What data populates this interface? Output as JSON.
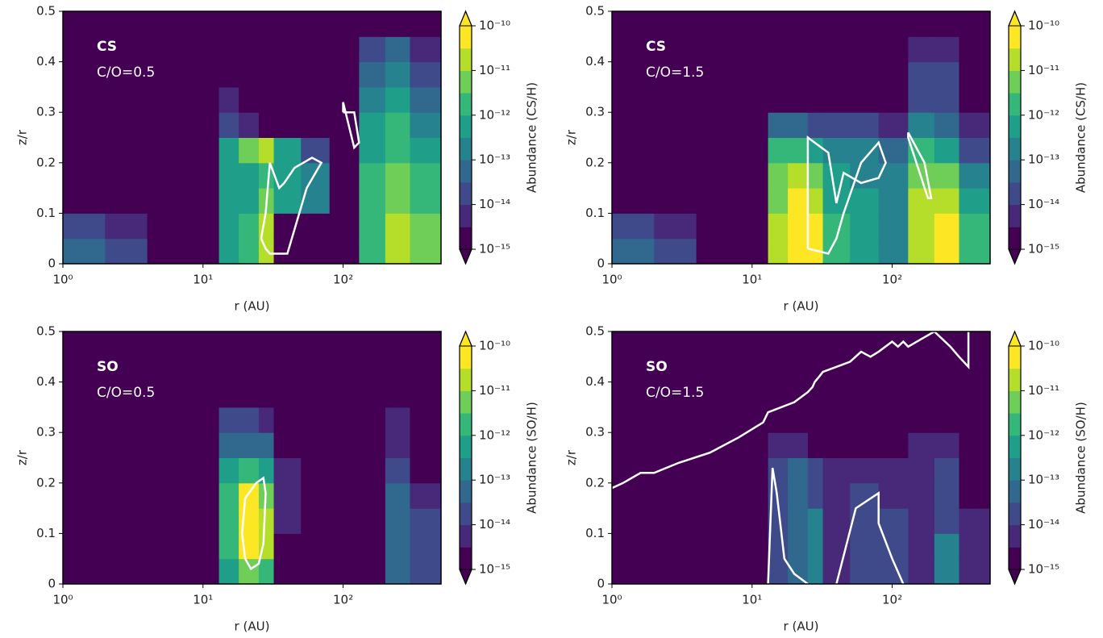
{
  "chart_data": [
    {
      "type": "contour",
      "species": "CS",
      "ratio": "C/O=0.5",
      "xlabel": "r (AU)",
      "ylabel": "z/r",
      "cbar_label": "Abundance (CS/H)",
      "cmap": "viridis",
      "xscale": "log",
      "xlim": [
        1,
        500
      ],
      "xticks": [
        {
          "value": 1,
          "label": "10⁰"
        },
        {
          "value": 10,
          "label": "10¹"
        },
        {
          "value": 100,
          "label": "10²"
        }
      ],
      "ylim": [
        0,
        0.5
      ],
      "yticks": [
        0,
        0.1,
        0.2,
        0.3,
        0.4,
        0.5
      ],
      "levels": [
        -15,
        -14.5,
        -14,
        -13.5,
        -13,
        -12.5,
        -12,
        -11.5,
        -11,
        -10.5,
        -10
      ],
      "zticks": [
        {
          "value": -10,
          "label": "10⁻¹⁰"
        },
        {
          "value": -11,
          "label": "10⁻¹¹"
        },
        {
          "value": -12,
          "label": "10⁻¹²"
        },
        {
          "value": -13,
          "label": "10⁻¹³"
        },
        {
          "value": -14,
          "label": "10⁻¹⁴"
        },
        {
          "value": -15,
          "label": "10⁻¹⁵"
        }
      ],
      "x_edges": [
        1,
        2,
        4,
        8,
        13,
        18,
        25,
        32,
        50,
        80,
        130,
        200,
        300,
        500
      ],
      "y_edges": [
        0,
        0.05,
        0.1,
        0.15,
        0.2,
        0.25,
        0.3,
        0.35,
        0.4,
        0.45,
        0.5
      ],
      "z": [
        [
          -13.5,
          -14,
          -15,
          -15,
          -12.5,
          -12,
          -11,
          -15,
          -15,
          -15,
          -12,
          -11,
          -11.5
        ],
        [
          -14,
          -14.5,
          -15,
          -15,
          -12.5,
          -12,
          -11,
          -15,
          -15,
          -15,
          -12,
          -11,
          -11.5
        ],
        [
          -15,
          -15,
          -15,
          -15,
          -12.5,
          -12.5,
          -11.5,
          -12.5,
          -13,
          -15,
          -12,
          -11.5,
          -12
        ],
        [
          -15,
          -15,
          -15,
          -15,
          -12.5,
          -12.5,
          -12,
          -12.5,
          -13,
          -15,
          -12,
          -11.5,
          -12
        ],
        [
          -15,
          -15,
          -15,
          -15,
          -12.5,
          -11.5,
          -11,
          -12.5,
          -14,
          -15,
          -12.5,
          -12,
          -12.5
        ],
        [
          -15,
          -15,
          -15,
          -15,
          -14,
          -14.5,
          -15,
          -15,
          -15,
          -15,
          -12.5,
          -12,
          -13
        ],
        [
          -15,
          -15,
          -15,
          -15,
          -14.5,
          -15,
          -15,
          -15,
          -15,
          -15,
          -13,
          -12.5,
          -13.5
        ],
        [
          -15,
          -15,
          -15,
          -15,
          -15,
          -15,
          -15,
          -15,
          -15,
          -15,
          -13.5,
          -13,
          -14
        ],
        [
          -15,
          -15,
          -15,
          -15,
          -15,
          -15,
          -15,
          -15,
          -15,
          -15,
          -14,
          -13.5,
          -14.5
        ],
        [
          -15,
          -15,
          -15,
          -15,
          -15,
          -15,
          -15,
          -15,
          -15,
          -15,
          -15,
          -15,
          -15
        ]
      ],
      "contours": [
        {
          "x": [
            26,
            28,
            30,
            35,
            40,
            55,
            70,
            60,
            45,
            38,
            35,
            30,
            28,
            26
          ],
          "y": [
            0.05,
            0.03,
            0.02,
            0.02,
            0.02,
            0.15,
            0.2,
            0.21,
            0.19,
            0.16,
            0.15,
            0.2,
            0.1,
            0.05
          ]
        },
        {
          "x": [
            100,
            120,
            130,
            120,
            100,
            100
          ],
          "y": [
            0.3,
            0.3,
            0.24,
            0.23,
            0.32,
            0.3
          ]
        }
      ]
    },
    {
      "type": "contour",
      "species": "CS",
      "ratio": "C/O=1.5",
      "xlabel": "r (AU)",
      "ylabel": "z/r",
      "cbar_label": "Abundance (CS/H)",
      "cmap": "viridis",
      "xscale": "log",
      "xlim": [
        1,
        500
      ],
      "xticks": [
        {
          "value": 1,
          "label": "10⁰"
        },
        {
          "value": 10,
          "label": "10¹"
        },
        {
          "value": 100,
          "label": "10²"
        }
      ],
      "ylim": [
        0,
        0.5
      ],
      "yticks": [
        0,
        0.1,
        0.2,
        0.3,
        0.4,
        0.5
      ],
      "levels": [
        -15,
        -14.5,
        -14,
        -13.5,
        -13,
        -12.5,
        -12,
        -11.5,
        -11,
        -10.5,
        -10
      ],
      "zticks": [
        {
          "value": -10,
          "label": "10⁻¹⁰"
        },
        {
          "value": -11,
          "label": "10⁻¹¹"
        },
        {
          "value": -12,
          "label": "10⁻¹²"
        },
        {
          "value": -13,
          "label": "10⁻¹³"
        },
        {
          "value": -14,
          "label": "10⁻¹⁴"
        },
        {
          "value": -15,
          "label": "10⁻¹⁵"
        }
      ],
      "x_edges": [
        1,
        2,
        4,
        8,
        13,
        18,
        25,
        32,
        50,
        80,
        130,
        200,
        300,
        500
      ],
      "y_edges": [
        0,
        0.05,
        0.1,
        0.15,
        0.2,
        0.25,
        0.3,
        0.35,
        0.4,
        0.45,
        0.5
      ],
      "z": [
        [
          -13.5,
          -14,
          -15,
          -15,
          -11,
          -10.5,
          -10.5,
          -12,
          -12.5,
          -13,
          -11,
          -10.5,
          -12
        ],
        [
          -14,
          -14.5,
          -15,
          -15,
          -11,
          -10.5,
          -10.5,
          -12,
          -12.5,
          -13,
          -11,
          -10.5,
          -12
        ],
        [
          -15,
          -15,
          -15,
          -15,
          -11.5,
          -10.5,
          -11,
          -12.5,
          -12.5,
          -13,
          -11,
          -11,
          -12.5
        ],
        [
          -15,
          -15,
          -15,
          -15,
          -11.5,
          -11,
          -11.5,
          -12.5,
          -13,
          -13,
          -11.5,
          -11.5,
          -13
        ],
        [
          -15,
          -15,
          -15,
          -15,
          -12,
          -12,
          -12.5,
          -13,
          -13,
          -13.5,
          -12,
          -12.5,
          -14
        ],
        [
          -15,
          -15,
          -15,
          -15,
          -13.5,
          -13.5,
          -14,
          -14,
          -14,
          -14.5,
          -13,
          -13.5,
          -14.5
        ],
        [
          -15,
          -15,
          -15,
          -15,
          -15,
          -15,
          -15,
          -15,
          -15,
          -15,
          -14,
          -14,
          -15
        ],
        [
          -15,
          -15,
          -15,
          -15,
          -15,
          -15,
          -15,
          -15,
          -15,
          -15,
          -14,
          -14,
          -15
        ],
        [
          -15,
          -15,
          -15,
          -15,
          -15,
          -15,
          -15,
          -15,
          -15,
          -15,
          -14.5,
          -14.5,
          -15
        ],
        [
          -15,
          -15,
          -15,
          -15,
          -15,
          -15,
          -15,
          -15,
          -15,
          -15,
          -15,
          -15,
          -15
        ]
      ],
      "contours": [
        {
          "x": [
            25,
            35,
            40,
            45,
            60,
            80,
            90,
            80,
            60,
            45,
            40,
            35,
            25,
            25
          ],
          "y": [
            0.03,
            0.02,
            0.05,
            0.1,
            0.2,
            0.24,
            0.2,
            0.17,
            0.16,
            0.18,
            0.12,
            0.22,
            0.25,
            0.03
          ]
        },
        {
          "x": [
            130,
            170,
            190,
            180,
            130,
            130
          ],
          "y": [
            0.26,
            0.2,
            0.13,
            0.13,
            0.25,
            0.26
          ]
        }
      ]
    },
    {
      "type": "contour",
      "species": "SO",
      "ratio": "C/O=0.5",
      "xlabel": "r (AU)",
      "ylabel": "z/r",
      "cbar_label": "Abundance (SO/H)",
      "cmap": "viridis",
      "xscale": "log",
      "xlim": [
        1,
        500
      ],
      "xticks": [
        {
          "value": 1,
          "label": "10⁰"
        },
        {
          "value": 10,
          "label": "10¹"
        },
        {
          "value": 100,
          "label": "10²"
        }
      ],
      "ylim": [
        0,
        0.5
      ],
      "yticks": [
        0,
        0.1,
        0.2,
        0.3,
        0.4,
        0.5
      ],
      "levels": [
        -15,
        -14.5,
        -14,
        -13.5,
        -13,
        -12.5,
        -12,
        -11.5,
        -11,
        -10.5,
        -10
      ],
      "zticks": [
        {
          "value": -10,
          "label": "10⁻¹⁰"
        },
        {
          "value": -11,
          "label": "10⁻¹¹"
        },
        {
          "value": -12,
          "label": "10⁻¹²"
        },
        {
          "value": -13,
          "label": "10⁻¹³"
        },
        {
          "value": -14,
          "label": "10⁻¹⁴"
        },
        {
          "value": -15,
          "label": "10⁻¹⁵"
        }
      ],
      "x_edges": [
        1,
        2,
        4,
        8,
        13,
        18,
        25,
        32,
        50,
        80,
        130,
        200,
        300,
        500
      ],
      "y_edges": [
        0,
        0.05,
        0.1,
        0.15,
        0.2,
        0.25,
        0.3,
        0.35,
        0.4,
        0.45,
        0.5
      ],
      "z": [
        [
          -15,
          -15,
          -15,
          -15,
          -12.5,
          -11.5,
          -12,
          -15,
          -15,
          -15,
          -15,
          -13.5,
          -14
        ],
        [
          -15,
          -15,
          -15,
          -15,
          -12,
          -10.5,
          -11,
          -15,
          -15,
          -15,
          -15,
          -13.5,
          -14
        ],
        [
          -15,
          -15,
          -15,
          -15,
          -12,
          -10.5,
          -11,
          -14.5,
          -15,
          -15,
          -15,
          -13.5,
          -14
        ],
        [
          -15,
          -15,
          -15,
          -15,
          -12,
          -10.5,
          -11.5,
          -14.5,
          -15,
          -15,
          -15,
          -13.5,
          -14.5
        ],
        [
          -15,
          -15,
          -15,
          -15,
          -12.5,
          -12,
          -12.5,
          -14.5,
          -15,
          -15,
          -15,
          -14,
          -15
        ],
        [
          -15,
          -15,
          -15,
          -15,
          -13.5,
          -13.5,
          -13.5,
          -15,
          -15,
          -15,
          -15,
          -14.5,
          -15
        ],
        [
          -15,
          -15,
          -15,
          -15,
          -14,
          -14,
          -14.5,
          -15,
          -15,
          -15,
          -15,
          -14.5,
          -15
        ],
        [
          -15,
          -15,
          -15,
          -15,
          -15,
          -15,
          -15,
          -15,
          -15,
          -15,
          -15,
          -15,
          -15
        ],
        [
          -15,
          -15,
          -15,
          -15,
          -15,
          -15,
          -15,
          -15,
          -15,
          -15,
          -15,
          -15,
          -15
        ],
        [
          -15,
          -15,
          -15,
          -15,
          -15,
          -15,
          -15,
          -15,
          -15,
          -15,
          -15,
          -15,
          -15
        ]
      ],
      "contours": [
        {
          "x": [
            20,
            22,
            25,
            27,
            28,
            27,
            24,
            20,
            19,
            20
          ],
          "y": [
            0.05,
            0.03,
            0.04,
            0.08,
            0.18,
            0.21,
            0.2,
            0.17,
            0.1,
            0.05
          ]
        }
      ]
    },
    {
      "type": "contour",
      "species": "SO",
      "ratio": "C/O=1.5",
      "xlabel": "r (AU)",
      "ylabel": "z/r",
      "cbar_label": "Abundance (SO/H)",
      "cmap": "viridis",
      "xscale": "log",
      "xlim": [
        1,
        500
      ],
      "xticks": [
        {
          "value": 1,
          "label": "10⁰"
        },
        {
          "value": 10,
          "label": "10¹"
        },
        {
          "value": 100,
          "label": "10²"
        }
      ],
      "ylim": [
        0,
        0.5
      ],
      "yticks": [
        0,
        0.1,
        0.2,
        0.3,
        0.4,
        0.5
      ],
      "levels": [
        -15,
        -14.5,
        -14,
        -13.5,
        -13,
        -12.5,
        -12,
        -11.5,
        -11,
        -10.5,
        -10
      ],
      "zticks": [
        {
          "value": -10,
          "label": "10⁻¹⁰"
        },
        {
          "value": -11,
          "label": "10⁻¹¹"
        },
        {
          "value": -12,
          "label": "10⁻¹²"
        },
        {
          "value": -13,
          "label": "10⁻¹³"
        },
        {
          "value": -14,
          "label": "10⁻¹⁴"
        },
        {
          "value": -15,
          "label": "10⁻¹⁵"
        }
      ],
      "x_edges": [
        1,
        2,
        4,
        8,
        13,
        18,
        25,
        32,
        50,
        80,
        130,
        200,
        300,
        500
      ],
      "y_edges": [
        0,
        0.05,
        0.1,
        0.15,
        0.2,
        0.25,
        0.3,
        0.35,
        0.4,
        0.45,
        0.5
      ],
      "z": [
        [
          -15,
          -15,
          -15,
          -15,
          -14,
          -13.5,
          -13,
          -14.5,
          -14,
          -14,
          -14.5,
          -13,
          -14.5
        ],
        [
          -15,
          -15,
          -15,
          -15,
          -14,
          -13.5,
          -13,
          -14.5,
          -14,
          -14,
          -14.5,
          -13,
          -14.5
        ],
        [
          -15,
          -15,
          -15,
          -15,
          -14,
          -13.5,
          -13,
          -14.5,
          -14,
          -14,
          -14.5,
          -14,
          -14.5
        ],
        [
          -15,
          -15,
          -15,
          -15,
          -14,
          -13.5,
          -14,
          -14.5,
          -14,
          -14.5,
          -14.5,
          -14,
          -15
        ],
        [
          -15,
          -15,
          -15,
          -15,
          -14,
          -13.5,
          -14,
          -14.5,
          -14.5,
          -14.5,
          -14.5,
          -14,
          -15
        ],
        [
          -15,
          -15,
          -15,
          -15,
          -14.5,
          -14.5,
          -15,
          -15,
          -15,
          -15,
          -14.5,
          -14.5,
          -15
        ],
        [
          -15,
          -15,
          -15,
          -15,
          -15,
          -15,
          -15,
          -15,
          -15,
          -15,
          -15,
          -15,
          -15
        ],
        [
          -15,
          -15,
          -15,
          -15,
          -15,
          -15,
          -15,
          -15,
          -15,
          -15,
          -15,
          -15,
          -15
        ],
        [
          -15,
          -15,
          -15,
          -15,
          -15,
          -15,
          -15,
          -15,
          -15,
          -15,
          -15,
          -15,
          -15
        ],
        [
          -15,
          -15,
          -15,
          -15,
          -15,
          -15,
          -15,
          -15,
          -15,
          -15,
          -15,
          -15,
          -15
        ]
      ],
      "contours": [
        {
          "x": [
            1,
            1.2,
            1.6,
            2,
            3,
            5,
            8,
            12,
            13,
            20,
            25,
            27,
            28,
            30,
            32,
            40,
            50,
            60,
            70,
            80,
            100,
            110,
            120,
            130,
            150,
            200,
            260,
            300,
            350,
            350
          ],
          "y": [
            0.19,
            0.2,
            0.22,
            0.22,
            0.24,
            0.26,
            0.29,
            0.32,
            0.34,
            0.36,
            0.38,
            0.39,
            0.4,
            0.41,
            0.42,
            0.43,
            0.44,
            0.46,
            0.45,
            0.46,
            0.48,
            0.47,
            0.48,
            0.47,
            0.48,
            0.5,
            0.47,
            0.45,
            0.43,
            0.5
          ]
        },
        {
          "x": [
            13,
            14,
            15,
            17,
            20,
            25
          ],
          "y": [
            0,
            0.23,
            0.18,
            0.05,
            0.02,
            0
          ]
        },
        {
          "x": [
            40,
            55,
            80,
            80,
            100,
            120
          ],
          "y": [
            0,
            0.15,
            0.18,
            0.12,
            0.05,
            0
          ]
        }
      ]
    }
  ]
}
